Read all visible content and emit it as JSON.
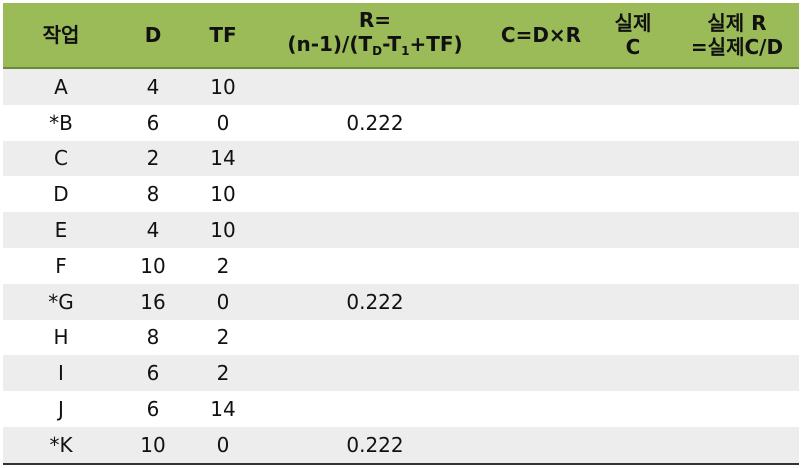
{
  "table": {
    "header": {
      "task": "작업",
      "d": "D",
      "tf": "TF",
      "r": {
        "line1": "R=",
        "parts": [
          "(n-1)/(T",
          "D",
          "-T",
          "1",
          "+TF)"
        ]
      },
      "c": "C=D×R",
      "actual_c": [
        "실제",
        "C"
      ],
      "actual_r": [
        "실제 R",
        "=실제C/D"
      ]
    },
    "rows": [
      {
        "task": "A",
        "d": 4,
        "tf": 10
      },
      {
        "task": "*B",
        "d": 6,
        "tf": 0,
        "r": 0.222
      },
      {
        "task": "C",
        "d": 2,
        "tf": 14
      },
      {
        "task": "D",
        "d": 8,
        "tf": 10
      },
      {
        "task": "E",
        "d": 4,
        "tf": 10
      },
      {
        "task": "F",
        "d": 10,
        "tf": 2
      },
      {
        "task": "*G",
        "d": 16,
        "tf": 0,
        "r": 0.222
      },
      {
        "task": "H",
        "d": 8,
        "tf": 2
      },
      {
        "task": "I",
        "d": 6,
        "tf": 2
      },
      {
        "task": "J",
        "d": 6,
        "tf": 14
      },
      {
        "task": "*K",
        "d": 10,
        "tf": 0,
        "r": 0.222
      }
    ]
  }
}
